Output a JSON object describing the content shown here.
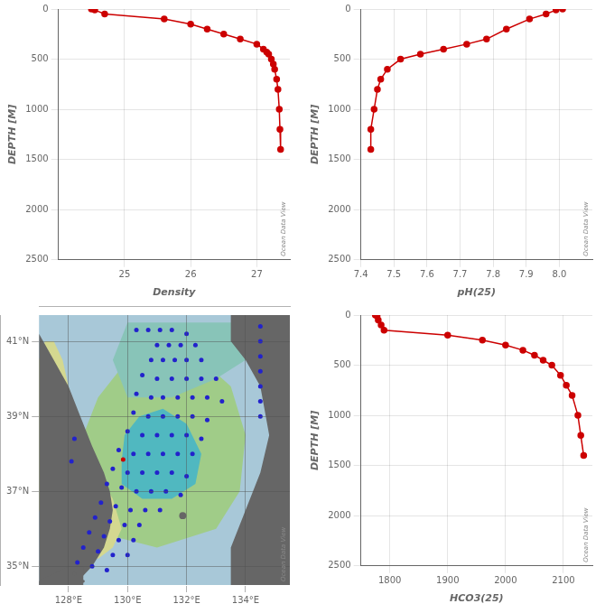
{
  "chart_data": [
    {
      "type": "line",
      "xlabel": "Density",
      "ylabel": "DEPTH [M]",
      "x": [
        24.5,
        24.55,
        24.7,
        25.6,
        26.0,
        26.25,
        26.5,
        26.75,
        27.0,
        27.1,
        27.15,
        27.18,
        27.22,
        27.25,
        27.27,
        27.3,
        27.32,
        27.34,
        27.35,
        27.36
      ],
      "values": [
        0,
        10,
        50,
        100,
        150,
        200,
        250,
        300,
        350,
        400,
        430,
        450,
        500,
        550,
        600,
        700,
        800,
        1000,
        1200,
        1400
      ],
      "color": "#cc0000",
      "marker": "circle",
      "xlim": [
        24.0,
        27.5
      ],
      "xticks": [
        25,
        26,
        27
      ],
      "ylim": [
        2500,
        0
      ],
      "yticks": [
        0,
        500,
        1000,
        1500,
        2000,
        2500
      ],
      "grid": true,
      "annotation": "Ocean Data View"
    },
    {
      "type": "line",
      "xlabel": "pH(25)",
      "ylabel": "DEPTH [M]",
      "x": [
        8.01,
        7.99,
        7.96,
        7.91,
        7.84,
        7.78,
        7.72,
        7.65,
        7.58,
        7.52,
        7.48,
        7.46,
        7.45,
        7.44,
        7.43,
        7.43
      ],
      "values": [
        0,
        10,
        50,
        100,
        200,
        300,
        350,
        400,
        450,
        500,
        600,
        700,
        800,
        1000,
        1200,
        1400
      ],
      "color": "#cc0000",
      "marker": "circle",
      "xlim": [
        7.4,
        8.1
      ],
      "xticks": [
        7.4,
        7.5,
        7.6,
        7.7,
        7.8,
        7.9,
        {
          "value": 8.0,
          "label": "8.0"
        }
      ],
      "ylim": [
        2500,
        0
      ],
      "yticks": [
        0,
        500,
        1000,
        1500,
        2000,
        2500
      ],
      "grid": true,
      "annotation": "Ocean Data View"
    },
    {
      "type": "scatter",
      "color": "#a8c8d8",
      "xlim": [
        127.0,
        135.5
      ],
      "xticks": [
        {
          "value": 128,
          "label": "128°E"
        },
        {
          "value": 130,
          "label": "130°E"
        },
        {
          "value": 132,
          "label": "132°E"
        },
        {
          "value": 134,
          "label": "134°E"
        }
      ],
      "ylim": [
        34.5,
        41.7
      ],
      "yticks": [
        {
          "value": 35,
          "label": "35°N"
        },
        {
          "value": 37,
          "label": "37°N"
        },
        {
          "value": 39,
          "label": "39°N"
        },
        {
          "value": 41,
          "label": "41°N"
        }
      ],
      "grid": true,
      "annotation": "Ocean Data View",
      "series": [
        {
          "type": "area",
          "color": "#6ec4a0",
          "values": [
            [
              129.2,
              36.8
            ],
            [
              130.0,
              36.2
            ],
            [
              131.2,
              36.2
            ],
            [
              132.5,
              36.6
            ],
            [
              133.2,
              37.2
            ],
            [
              133.3,
              38.2
            ],
            [
              132.8,
              39.2
            ],
            [
              131.8,
              39.8
            ],
            [
              130.8,
              39.8
            ],
            [
              129.8,
              39.3
            ],
            [
              129.3,
              38.6
            ],
            [
              129.0,
              37.8
            ],
            [
              129.2,
              36.8
            ]
          ]
        },
        {
          "type": "area",
          "color": "#a0cc88",
          "values": [
            [
              128.8,
              36.5
            ],
            [
              129.5,
              35.8
            ],
            [
              131.0,
              35.5
            ],
            [
              133.0,
              36.0
            ],
            [
              133.8,
              37.0
            ],
            [
              134.0,
              38.5
            ],
            [
              133.5,
              39.8
            ],
            [
              132.5,
              40.5
            ],
            [
              131.2,
              40.8
            ],
            [
              130.0,
              40.5
            ],
            [
              129.0,
              39.5
            ],
            [
              128.5,
              38.5
            ],
            [
              128.5,
              37.5
            ],
            [
              128.8,
              36.5
            ]
          ]
        },
        {
          "type": "area",
          "color": "#50b8c0",
          "values": [
            [
              129.8,
              37.2
            ],
            [
              130.5,
              36.8
            ],
            [
              131.5,
              36.8
            ],
            [
              132.3,
              37.2
            ],
            [
              132.5,
              38.0
            ],
            [
              132.0,
              38.8
            ],
            [
              131.2,
              39.2
            ],
            [
              130.4,
              39.0
            ],
            [
              129.9,
              38.5
            ],
            [
              129.8,
              37.8
            ],
            [
              129.8,
              37.2
            ]
          ]
        },
        {
          "type": "area",
          "color": "#d4d890",
          "values": [
            [
              128.4,
              35.5
            ],
            [
              129.0,
              35.2
            ],
            [
              129.5,
              35.5
            ],
            [
              129.8,
              36.0
            ],
            [
              129.5,
              36.8
            ],
            [
              129.0,
              37.5
            ],
            [
              128.6,
              38.2
            ],
            [
              128.3,
              39.0
            ],
            [
              128.0,
              39.8
            ],
            [
              127.8,
              40.5
            ],
            [
              127.5,
              41.0
            ],
            [
              127.2,
              41.0
            ],
            [
              127.0,
              40.5
            ],
            [
              127.0,
              39.5
            ],
            [
              127.0,
              38.0
            ],
            [
              127.0,
              36.5
            ],
            [
              127.5,
              35.5
            ],
            [
              128.0,
              35.0
            ],
            [
              128.4,
              35.5
            ]
          ]
        },
        {
          "type": "area",
          "color": "#88c4b8",
          "values": [
            [
              130.0,
              39.5
            ],
            [
              131.5,
              39.5
            ],
            [
              133.0,
              40.0
            ],
            [
              134.0,
              40.5
            ],
            [
              134.5,
              41.5
            ],
            [
              132.0,
              41.5
            ],
            [
              130.0,
              41.5
            ],
            [
              129.5,
              40.5
            ],
            [
              130.0,
              39.5
            ]
          ]
        },
        {
          "type": "area",
          "color": "#666666",
          "values": [
            [
              127.0,
              34.5
            ],
            [
              128.2,
              34.5
            ],
            [
              128.8,
              35.0
            ],
            [
              129.2,
              35.5
            ],
            [
              129.4,
              36.0
            ],
            [
              129.5,
              36.5
            ],
            [
              129.4,
              37.0
            ],
            [
              129.2,
              37.5
            ],
            [
              128.8,
              38.2
            ],
            [
              128.4,
              39.0
            ],
            [
              128.0,
              39.8
            ],
            [
              127.5,
              40.5
            ],
            [
              127.0,
              41.2
            ],
            [
              127.0,
              34.5
            ]
          ]
        },
        {
          "type": "area",
          "color": "#666666",
          "values": [
            [
              127.0,
              34.5
            ],
            [
              128.5,
              34.5
            ],
            [
              128.5,
              35.0
            ],
            [
              128.0,
              35.0
            ],
            [
              127.5,
              34.8
            ],
            [
              127.0,
              34.6
            ]
          ]
        },
        {
          "type": "area",
          "color": "#666666",
          "values": [
            [
              133.5,
              34.5
            ],
            [
              135.5,
              34.5
            ],
            [
              135.5,
              41.7
            ],
            [
              133.5,
              41.7
            ],
            [
              133.5,
              41.0
            ],
            [
              134.0,
              40.5
            ],
            [
              134.5,
              39.8
            ],
            [
              134.8,
              38.5
            ],
            [
              134.5,
              37.5
            ],
            [
              134.0,
              36.5
            ],
            [
              133.5,
              35.5
            ],
            [
              133.5,
              34.5
            ]
          ]
        },
        {
          "type": "circle",
          "color": "#666666",
          "values": [
            [
              131.87,
              36.35
            ],
            [
              128.2,
              34.8
            ],
            [
              128.5,
              34.6
            ]
          ],
          "radius": [
            0.12,
            0.06,
            0.05
          ]
        },
        {
          "type": "scatter",
          "color": "#2222cc",
          "marker": "circle",
          "values": [
            [
              130.3,
              41.3
            ],
            [
              130.7,
              41.3
            ],
            [
              131.1,
              41.3
            ],
            [
              131.5,
              41.3
            ],
            [
              132.0,
              41.2
            ],
            [
              131.0,
              40.9
            ],
            [
              131.4,
              40.9
            ],
            [
              131.8,
              40.9
            ],
            [
              132.3,
              40.9
            ],
            [
              130.8,
              40.5
            ],
            [
              131.2,
              40.5
            ],
            [
              131.6,
              40.5
            ],
            [
              132.0,
              40.5
            ],
            [
              132.5,
              40.5
            ],
            [
              130.5,
              40.1
            ],
            [
              131.0,
              40.0
            ],
            [
              131.5,
              40.0
            ],
            [
              132.0,
              40.0
            ],
            [
              132.5,
              40.0
            ],
            [
              133.0,
              40.0
            ],
            [
              130.3,
              39.6
            ],
            [
              130.8,
              39.5
            ],
            [
              131.2,
              39.5
            ],
            [
              131.7,
              39.5
            ],
            [
              132.2,
              39.5
            ],
            [
              132.7,
              39.5
            ],
            [
              133.2,
              39.4
            ],
            [
              130.2,
              39.1
            ],
            [
              130.7,
              39.0
            ],
            [
              131.2,
              39.0
            ],
            [
              131.7,
              39.0
            ],
            [
              132.2,
              39.0
            ],
            [
              132.7,
              38.9
            ],
            [
              130.0,
              38.6
            ],
            [
              130.5,
              38.5
            ],
            [
              131.0,
              38.5
            ],
            [
              131.5,
              38.5
            ],
            [
              132.0,
              38.5
            ],
            [
              132.5,
              38.4
            ],
            [
              129.7,
              38.1
            ],
            [
              130.2,
              38.0
            ],
            [
              130.7,
              38.0
            ],
            [
              131.2,
              38.0
            ],
            [
              131.7,
              38.0
            ],
            [
              132.2,
              38.0
            ],
            [
              129.5,
              37.6
            ],
            [
              130.0,
              37.5
            ],
            [
              130.5,
              37.5
            ],
            [
              131.0,
              37.5
            ],
            [
              131.5,
              37.5
            ],
            [
              132.0,
              37.4
            ],
            [
              129.3,
              37.2
            ],
            [
              129.8,
              37.1
            ],
            [
              130.3,
              37.0
            ],
            [
              130.8,
              37.0
            ],
            [
              131.3,
              37.0
            ],
            [
              131.8,
              36.9
            ],
            [
              129.1,
              36.7
            ],
            [
              129.6,
              36.6
            ],
            [
              130.1,
              36.5
            ],
            [
              130.6,
              36.5
            ],
            [
              131.1,
              36.5
            ],
            [
              128.9,
              36.3
            ],
            [
              129.4,
              36.2
            ],
            [
              129.9,
              36.1
            ],
            [
              130.4,
              36.1
            ],
            [
              128.7,
              35.9
            ],
            [
              129.2,
              35.8
            ],
            [
              129.7,
              35.7
            ],
            [
              130.2,
              35.7
            ],
            [
              128.5,
              35.5
            ],
            [
              129.0,
              35.4
            ],
            [
              129.5,
              35.3
            ],
            [
              130.0,
              35.3
            ],
            [
              128.3,
              35.1
            ],
            [
              128.8,
              35.0
            ],
            [
              129.3,
              34.9
            ],
            [
              134.5,
              41.4
            ],
            [
              134.5,
              41.0
            ],
            [
              134.5,
              40.6
            ],
            [
              134.5,
              40.2
            ],
            [
              134.5,
              39.8
            ],
            [
              134.5,
              39.4
            ],
            [
              134.5,
              39.0
            ],
            [
              128.2,
              38.4
            ],
            [
              128.1,
              37.8
            ]
          ]
        },
        {
          "type": "scatter",
          "color": "#cc0000",
          "marker": "circle",
          "values": [
            [
              129.85,
              37.85
            ]
          ]
        }
      ]
    },
    {
      "type": "line",
      "xlabel": "HCO3(25)",
      "ylabel": "DEPTH [M]",
      "x": [
        1775,
        1778,
        1780,
        1785,
        1790,
        1900,
        1960,
        2000,
        2030,
        2050,
        2065,
        2080,
        2095,
        2105,
        2115,
        2125,
        2130,
        2135
      ],
      "values": [
        0,
        10,
        50,
        100,
        150,
        200,
        250,
        300,
        350,
        400,
        450,
        500,
        600,
        700,
        800,
        1000,
        1200,
        1400
      ],
      "color": "#cc0000",
      "marker": "circle",
      "xlim": [
        1750,
        2150
      ],
      "xticks": [
        1800,
        1900,
        2000,
        2100
      ],
      "ylim": [
        2500,
        0
      ],
      "yticks": [
        0,
        500,
        1000,
        1500,
        2000,
        2500
      ],
      "grid": true,
      "annotation": "Ocean Data View"
    }
  ]
}
